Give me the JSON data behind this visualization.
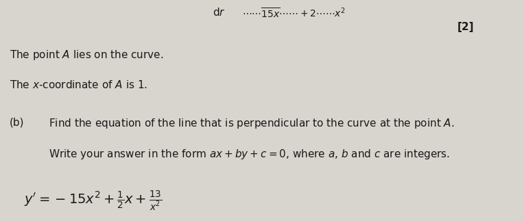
{
  "background_color": "#d8d5ce",
  "top_text": "dr",
  "top_formula": "......\\overline{\\mathbf{15x}}\\mathbf{+2-}\\frac{\\mathbf{x^2}}{\\mathbf{1}}",
  "bracket_label": "[2]",
  "line1": "The point $A$ lies on the curve.",
  "line2": "The $x$-coordinate of $A$ is 1.",
  "part_b_label": "(b)",
  "part_b_text1": "Find the equation of the line that is perpendicular to the curve at the point $A$.",
  "part_b_text2": "Write your answer in the form $ax + by + c = 0$, where $a$, $b$ and $c$ are integers.",
  "answer_line": "$y^{\\prime} = -15x^{2} + \\frac{1}{2}x + \\frac{13}{x^{2}}$",
  "font_size_body": 11,
  "font_size_answer": 13,
  "font_size_bracket": 11,
  "text_color": "#1a1a1a"
}
